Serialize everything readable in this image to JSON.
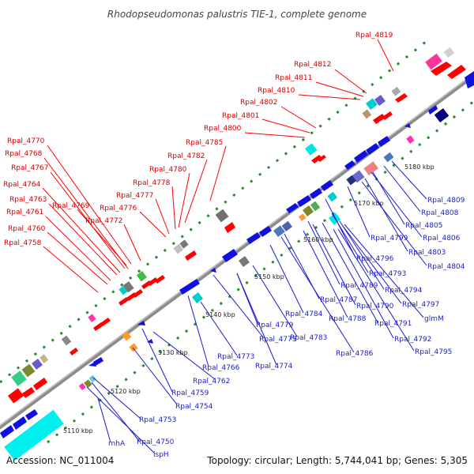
{
  "title": "Rhodopseudomonas palustris TIE-1, complete genome",
  "footer": {
    "accession": "Accession: NC_011004",
    "summary": "Topology: circular; Length: 5,744,041 bp; Genes: 5,305"
  },
  "colors": {
    "forward_label": "#d40000",
    "reverse_label": "#1a1ad4",
    "backbone": "#8c8c8c",
    "forward_gene": "#ff0000",
    "reverse_gene": "#1010e0",
    "tick": "#2a8a2a"
  },
  "kbp_ticks": [
    "5110 kbp",
    "5120 kbp",
    "5130 kbp",
    "5140 kbp",
    "5150 kbp",
    "5160 kbp",
    "5170 kbp",
    "5180 kbp"
  ],
  "forward_labels": [
    "Rpal_4819",
    "Rpal_4812",
    "Rpal_4811",
    "Rpal_4810",
    "Rpal_4802",
    "Rpal_4801",
    "Rpal_4800",
    "Rpal_4785",
    "Rpal_4782",
    "Rpal_4780",
    "Rpal_4778",
    "Rpal_4777",
    "Rpal_4776",
    "Rpal_4772",
    "Rpal_4770",
    "Rpal_4768",
    "Rpal_4767",
    "Rpal_4769",
    "Rpal_4764",
    "Rpal_4763",
    "Rpal_4761",
    "Rpal_4760",
    "Rpal_4758"
  ],
  "reverse_labels": [
    "Rpal_4809",
    "Rpal_4808",
    "Rpal_4805",
    "Rpal_4806",
    "Rpal_4803",
    "Rpal_4804",
    "Rpal_4799",
    "Rpal_4796",
    "Rpal_4793",
    "Rpal_4794",
    "Rpal_4797",
    "Rpal_4789",
    "Rpal_4787",
    "Rpal_4790",
    "glmM",
    "Rpal_4788",
    "Rpal_4791",
    "Rpal_4784",
    "Rpal_4792",
    "Rpal_4795",
    "Rpal_4779",
    "Rpal_4783",
    "Rpal_4775",
    "Rpal_4786",
    "Rpal_4773",
    "Rpal_4774",
    "Rpal_4766",
    "Rpal_4762",
    "Rpal_4759",
    "Rpal_4754",
    "Rpal_4753",
    "rnhA",
    "Rpal_4750",
    "ispH"
  ]
}
